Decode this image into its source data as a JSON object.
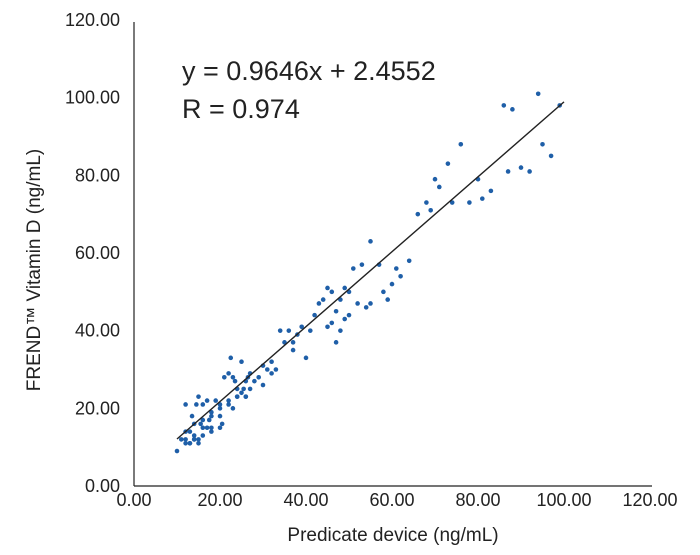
{
  "chart_data": {
    "type": "scatter",
    "title": "",
    "xlabel": "Predicate device (ng/mL)",
    "ylabel": "FREND™ Vitamin D (ng/mL)",
    "xlim": [
      0,
      120
    ],
    "ylim": [
      0,
      120
    ],
    "x_ticks": [
      "0.00",
      "20.00",
      "40.00",
      "60.00",
      "80.00",
      "100.00",
      "120.00"
    ],
    "y_ticks": [
      "0.00",
      "20.00",
      "40.00",
      "60.00",
      "80.00",
      "100.00",
      "120.00"
    ],
    "grid": false,
    "legend": "none",
    "point_color": "#1f5fa8",
    "trendline_color": "#222222",
    "trendline": {
      "slope": 0.9646,
      "intercept": 2.4552,
      "x_range": [
        10,
        100
      ]
    },
    "annotations": [
      "y = 0.9646x + 2.4552",
      "R = 0.974"
    ],
    "series": [
      {
        "x": [
          10,
          11,
          12,
          12,
          13,
          13,
          13.5,
          14,
          14,
          14.5,
          15,
          15,
          15.5,
          16,
          16,
          17,
          17,
          17.5,
          18,
          18,
          19,
          20,
          20,
          20.5,
          21,
          22,
          22,
          22.5,
          23,
          23,
          23.5,
          24,
          24,
          25,
          25,
          25.5,
          26,
          26,
          26.5,
          27,
          27,
          28,
          29,
          30,
          30,
          31,
          32,
          32,
          33,
          34,
          35,
          36,
          37,
          37,
          38,
          39,
          40,
          41,
          42,
          43,
          44,
          45,
          45,
          46,
          46,
          47,
          47,
          48,
          48,
          49,
          49,
          50,
          50,
          51,
          52,
          53,
          54,
          55,
          55,
          57,
          58,
          59,
          60,
          61,
          62,
          64,
          66,
          68,
          69,
          70,
          71,
          73,
          74,
          76,
          78,
          80,
          81,
          83,
          86,
          87,
          88,
          90,
          92,
          94,
          95,
          97,
          99,
          12,
          13,
          14,
          15,
          16,
          18,
          20,
          22,
          24,
          26,
          12,
          14,
          16,
          18,
          20
        ],
        "y": [
          9,
          12,
          12,
          21,
          11,
          14,
          18,
          12,
          13,
          21,
          12,
          23,
          16,
          13,
          21,
          15,
          22,
          17,
          18,
          14,
          22,
          21,
          18,
          16,
          28,
          29,
          22,
          33,
          28,
          20,
          27,
          25,
          23,
          24,
          32,
          25,
          27,
          23,
          28,
          25,
          29,
          27,
          28,
          26,
          31,
          30,
          32,
          29,
          30,
          40,
          37,
          40,
          37,
          35,
          39,
          41,
          33,
          40,
          44,
          47,
          48,
          41,
          51,
          42,
          50,
          45,
          37,
          48,
          40,
          51,
          43,
          44,
          50,
          56,
          47,
          57,
          46,
          63,
          47,
          57,
          50,
          48,
          52,
          56,
          54,
          58,
          70,
          73,
          71,
          79,
          77,
          83,
          73,
          88,
          73,
          79,
          74,
          76,
          98,
          81,
          97,
          82,
          81,
          101,
          88,
          85,
          98,
          11,
          11,
          12,
          11,
          15,
          15,
          15,
          21,
          23,
          23,
          14,
          16,
          17,
          19,
          20
        ]
      }
    ]
  }
}
